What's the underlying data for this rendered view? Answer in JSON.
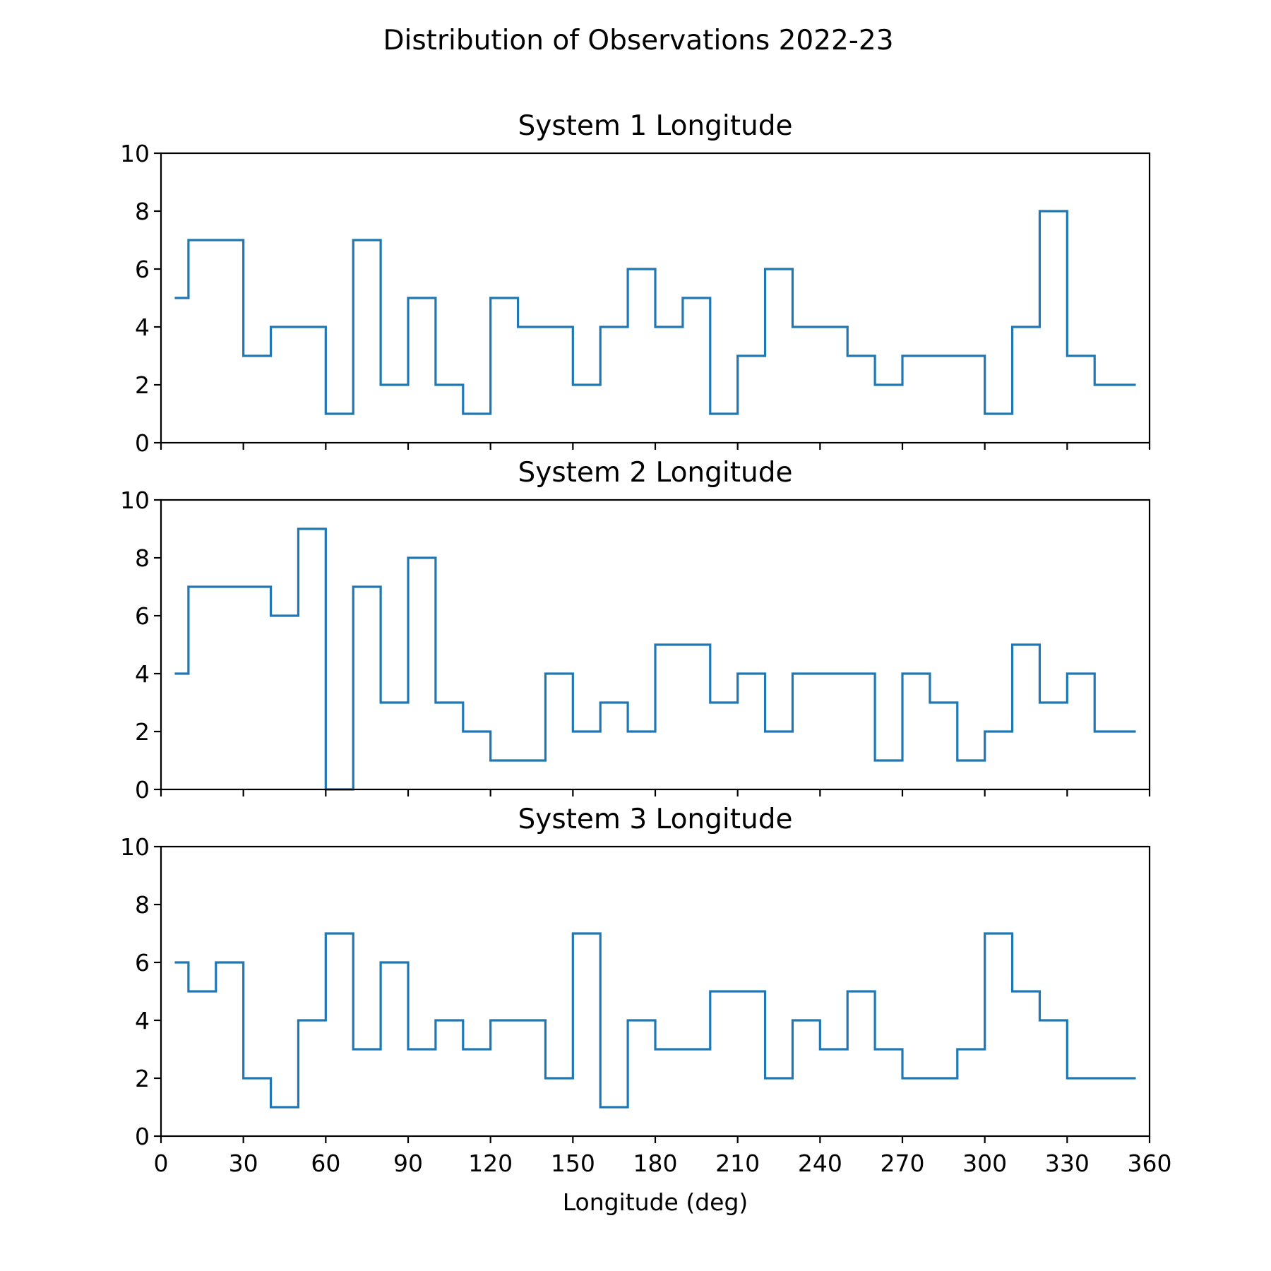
{
  "figure": {
    "title": "Distribution of Observations 2022-23",
    "line_color": "#1f77b4"
  },
  "chart_data": [
    {
      "type": "line",
      "step": "mid",
      "title": "System 1 Longitude",
      "xlabel": "",
      "ylabel": "",
      "xlim": [
        0,
        360
      ],
      "ylim": [
        0,
        10
      ],
      "x_ticks": [
        0,
        30,
        60,
        90,
        120,
        150,
        180,
        210,
        240,
        270,
        300,
        330,
        360
      ],
      "y_ticks": [
        0,
        2,
        4,
        6,
        8,
        10
      ],
      "x": [
        5,
        15,
        25,
        35,
        45,
        55,
        65,
        75,
        85,
        95,
        105,
        115,
        125,
        135,
        145,
        155,
        165,
        175,
        185,
        195,
        205,
        215,
        225,
        235,
        245,
        255,
        265,
        275,
        285,
        295,
        305,
        315,
        325,
        335,
        345,
        355
      ],
      "values": [
        5,
        7,
        7,
        3,
        4,
        4,
        1,
        7,
        2,
        5,
        2,
        1,
        5,
        4,
        4,
        2,
        4,
        6,
        4,
        5,
        1,
        3,
        6,
        4,
        4,
        3,
        2,
        3,
        3,
        3,
        1,
        4,
        8,
        3,
        2,
        2
      ]
    },
    {
      "type": "line",
      "step": "mid",
      "title": "System 2 Longitude",
      "xlabel": "",
      "ylabel": "",
      "xlim": [
        0,
        360
      ],
      "ylim": [
        0,
        10
      ],
      "x_ticks": [
        0,
        30,
        60,
        90,
        120,
        150,
        180,
        210,
        240,
        270,
        300,
        330,
        360
      ],
      "y_ticks": [
        0,
        2,
        4,
        6,
        8,
        10
      ],
      "x": [
        5,
        15,
        25,
        35,
        45,
        55,
        65,
        75,
        85,
        95,
        105,
        115,
        125,
        135,
        145,
        155,
        165,
        175,
        185,
        195,
        205,
        215,
        225,
        235,
        245,
        255,
        265,
        275,
        285,
        295,
        305,
        315,
        325,
        335,
        345,
        355
      ],
      "values": [
        4,
        7,
        7,
        7,
        6,
        9,
        0,
        7,
        3,
        8,
        3,
        2,
        1,
        1,
        4,
        2,
        3,
        2,
        5,
        5,
        3,
        4,
        2,
        4,
        4,
        4,
        1,
        4,
        3,
        1,
        2,
        5,
        3,
        4,
        2,
        2
      ]
    },
    {
      "type": "line",
      "step": "mid",
      "title": "System 3 Longitude",
      "xlabel": "Longitude (deg)",
      "ylabel": "",
      "xlim": [
        0,
        360
      ],
      "ylim": [
        0,
        10
      ],
      "x_ticks": [
        0,
        30,
        60,
        90,
        120,
        150,
        180,
        210,
        240,
        270,
        300,
        330,
        360
      ],
      "y_ticks": [
        0,
        2,
        4,
        6,
        8,
        10
      ],
      "x": [
        5,
        15,
        25,
        35,
        45,
        55,
        65,
        75,
        85,
        95,
        105,
        115,
        125,
        135,
        145,
        155,
        165,
        175,
        185,
        195,
        205,
        215,
        225,
        235,
        245,
        255,
        265,
        275,
        285,
        295,
        305,
        315,
        325,
        335,
        345,
        355
      ],
      "values": [
        6,
        5,
        6,
        2,
        1,
        4,
        7,
        3,
        6,
        3,
        4,
        3,
        4,
        4,
        2,
        7,
        1,
        4,
        3,
        3,
        5,
        5,
        2,
        4,
        3,
        5,
        3,
        2,
        2,
        3,
        7,
        5,
        4,
        2,
        2,
        2
      ]
    }
  ]
}
